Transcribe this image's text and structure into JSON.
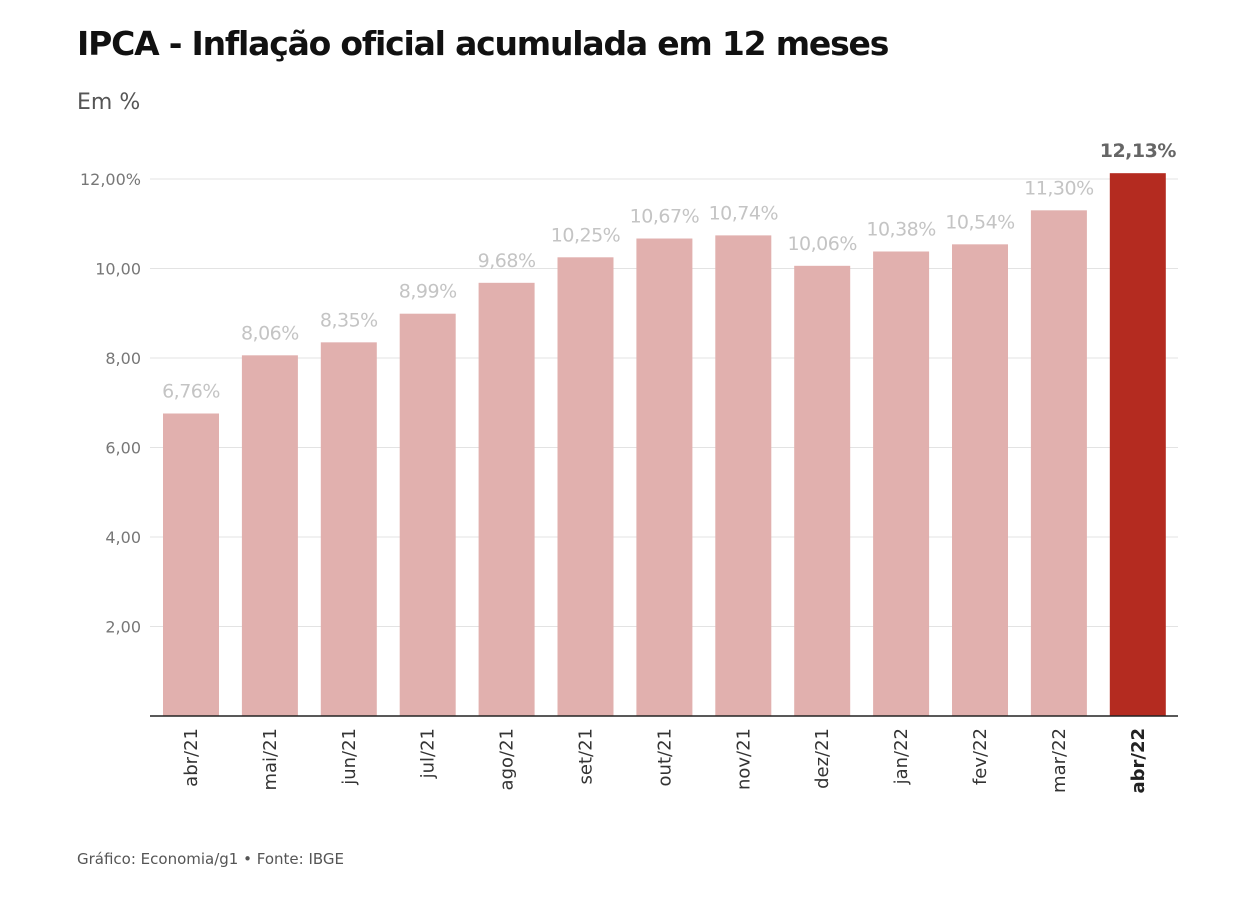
{
  "chart_data": {
    "type": "bar",
    "title": "IPCA - Inflação oficial acumulada em 12 meses",
    "subtitle": "Em %",
    "source": "Gráfico: Economia/g1 • Fonte: IBGE",
    "categories": [
      "abr/21",
      "mai/21",
      "jun/21",
      "jul/21",
      "ago/21",
      "set/21",
      "out/21",
      "nov/21",
      "dez/21",
      "jan/22",
      "fev/22",
      "mar/22",
      "abr/22"
    ],
    "values": [
      6.76,
      8.06,
      8.35,
      8.99,
      9.68,
      10.25,
      10.67,
      10.74,
      10.06,
      10.38,
      10.54,
      11.3,
      12.13
    ],
    "data_labels": [
      "6,76%",
      "8,06%",
      "8,35%",
      "8,99%",
      "9,68%",
      "10,25%",
      "10,67%",
      "10,74%",
      "10,06%",
      "10,38%",
      "10,54%",
      "11,30%",
      "12,13%"
    ],
    "highlight_index": 12,
    "yticks": [
      2,
      4,
      6,
      8,
      10,
      12
    ],
    "ytick_labels": [
      "2,00",
      "4,00",
      "6,00",
      "8,00",
      "10,00",
      "12,00%"
    ],
    "ylim": [
      0,
      12
    ],
    "grid": true,
    "colors": {
      "bar": "#e1b0ae",
      "highlight": "#b42b20",
      "label": "#c4c4c4",
      "highlight_label": "#666666"
    }
  }
}
